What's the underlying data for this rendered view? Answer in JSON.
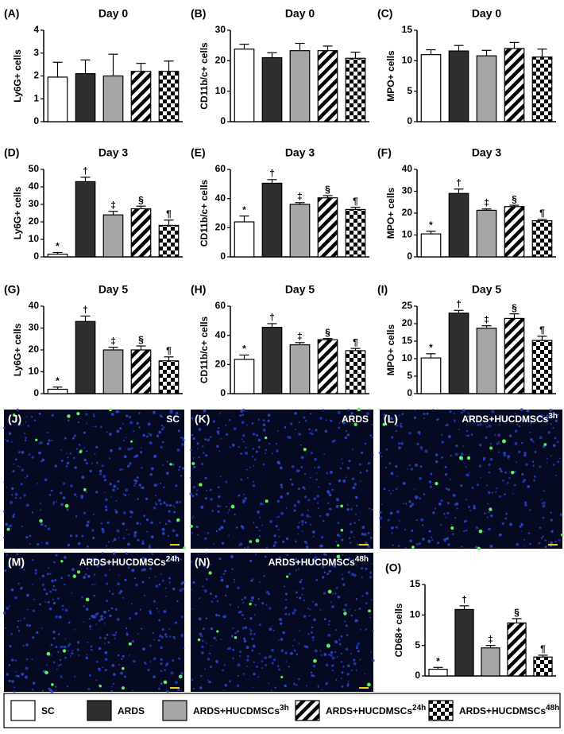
{
  "chart_data": [
    {
      "type": "bar",
      "panel": "(A)",
      "title": "Day 0",
      "y_label": "Ly6G+ cells",
      "values": [
        1.95,
        2.1,
        2.0,
        2.2,
        2.2
      ],
      "errors": [
        0.65,
        0.6,
        0.95,
        0.35,
        0.45
      ],
      "ylim": [
        0,
        4
      ],
      "yticks": [
        0,
        1,
        2,
        3,
        4
      ]
    },
    {
      "type": "bar",
      "panel": "(B)",
      "title": "Day 0",
      "y_label": "CD11b/c+ cells",
      "values": [
        23.8,
        21,
        23.3,
        23.3,
        20.8
      ],
      "errors": [
        1.6,
        1.6,
        2.4,
        1.5,
        2.0
      ],
      "ylim": [
        0,
        30
      ],
      "yticks": [
        0,
        10,
        20,
        30
      ]
    },
    {
      "type": "bar",
      "panel": "(C)",
      "title": "Day 0",
      "y_label": "MPO+ cells",
      "values": [
        11,
        11.6,
        10.8,
        12,
        10.6
      ],
      "errors": [
        0.8,
        0.9,
        0.9,
        1.0,
        1.3
      ],
      "ylim": [
        0,
        15
      ],
      "yticks": [
        0,
        5,
        10,
        15
      ]
    },
    {
      "type": "bar",
      "panel": "(D)",
      "title": "Day 3",
      "y_label": "Ly6G+ cells",
      "values": [
        1.5,
        43,
        24,
        27.5,
        18
      ],
      "errors": [
        1,
        2.5,
        2,
        1.5,
        3
      ],
      "annotations": [
        "*",
        "†",
        "‡",
        "§",
        "¶"
      ],
      "ylim": [
        0,
        50
      ],
      "yticks": [
        0,
        10,
        20,
        30,
        40,
        50
      ]
    },
    {
      "type": "bar",
      "panel": "(E)",
      "title": "Day 3",
      "y_label": "CD11b/c+ cells",
      "values": [
        24,
        50.5,
        36,
        40.5,
        32.5
      ],
      "errors": [
        4,
        2.5,
        1.2,
        1.5,
        1.5
      ],
      "annotations": [
        "*",
        "†",
        "‡",
        "§",
        "¶"
      ],
      "ylim": [
        0,
        60
      ],
      "yticks": [
        0,
        20,
        40,
        60
      ]
    },
    {
      "type": "bar",
      "panel": "(F)",
      "title": "Day 3",
      "y_label": "MPO+ cells",
      "values": [
        10.5,
        29,
        21.3,
        23,
        16.5
      ],
      "errors": [
        1.2,
        2,
        0.6,
        0.6,
        0.6
      ],
      "annotations": [
        "*",
        "†",
        "‡",
        "§",
        "¶"
      ],
      "ylim": [
        0,
        40
      ],
      "yticks": [
        0,
        10,
        20,
        30,
        40
      ]
    },
    {
      "type": "bar",
      "panel": "(G)",
      "title": "Day 5",
      "y_label": "Ly6G+ cells",
      "values": [
        2,
        33,
        20,
        20,
        15
      ],
      "errors": [
        1,
        2.5,
        1.2,
        1.8,
        1.8
      ],
      "annotations": [
        "*",
        "†",
        "‡",
        "§",
        "¶"
      ],
      "ylim": [
        0,
        40
      ],
      "yticks": [
        0,
        10,
        20,
        30,
        40
      ]
    },
    {
      "type": "bar",
      "panel": "(H)",
      "title": "Day 5",
      "y_label": "CD11b/c+ cells",
      "values": [
        23.5,
        45.5,
        33.5,
        37,
        29.5
      ],
      "errors": [
        3,
        2.5,
        1.5,
        0.8,
        1.5
      ],
      "annotations": [
        "*",
        "†",
        "‡",
        "§",
        "¶"
      ],
      "ylim": [
        0,
        60
      ],
      "yticks": [
        0,
        20,
        40,
        60
      ]
    },
    {
      "type": "bar",
      "panel": "(I)",
      "title": "Day 5",
      "y_label": "MPO+ cells",
      "values": [
        10.2,
        23,
        18.7,
        21.5,
        15.2
      ],
      "errors": [
        1.2,
        0.8,
        0.7,
        1.3,
        1.2
      ],
      "annotations": [
        "*",
        "†",
        "‡",
        "§",
        "¶"
      ],
      "ylim": [
        0,
        25
      ],
      "yticks": [
        0,
        5,
        10,
        15,
        20,
        25
      ]
    },
    {
      "type": "bar",
      "panel": "(O)",
      "y_label": "CD68+ cells",
      "values": [
        1.1,
        10.9,
        4.6,
        8.7,
        3.1
      ],
      "errors": [
        0.3,
        0.6,
        0.4,
        0.7,
        0.3
      ],
      "annotations": [
        "*",
        "†",
        "‡",
        "§",
        "¶"
      ],
      "ylim": [
        0,
        15
      ],
      "yticks": [
        0,
        5,
        10,
        15
      ]
    }
  ],
  "images": [
    {
      "panel": "(J)",
      "label": "SC"
    },
    {
      "panel": "(K)",
      "label": "ARDS"
    },
    {
      "panel": "(L)",
      "label": "ARDS+HUCDMSCs",
      "label_sup": "3h"
    },
    {
      "panel": "(M)",
      "label": "ARDS+HUCDMSCs",
      "label_sup": "24h"
    },
    {
      "panel": "(N)",
      "label": "ARDS+HUCDMSCs",
      "label_sup": "48h"
    }
  ],
  "legend": [
    {
      "name": "SC",
      "fill": "#ffffff"
    },
    {
      "name": "ARDS",
      "fill": "#2e2e2e"
    },
    {
      "name": "ARDS+HUCDMSCs",
      "sup": "3h",
      "fill": "#a6a6a6"
    },
    {
      "name": "ARDS+HUCDMSCs",
      "sup": "24h",
      "fill": "url(#stripes)"
    },
    {
      "name": "ARDS+HUCDMSCs",
      "sup": "48h",
      "fill": "url(#checker)"
    }
  ]
}
